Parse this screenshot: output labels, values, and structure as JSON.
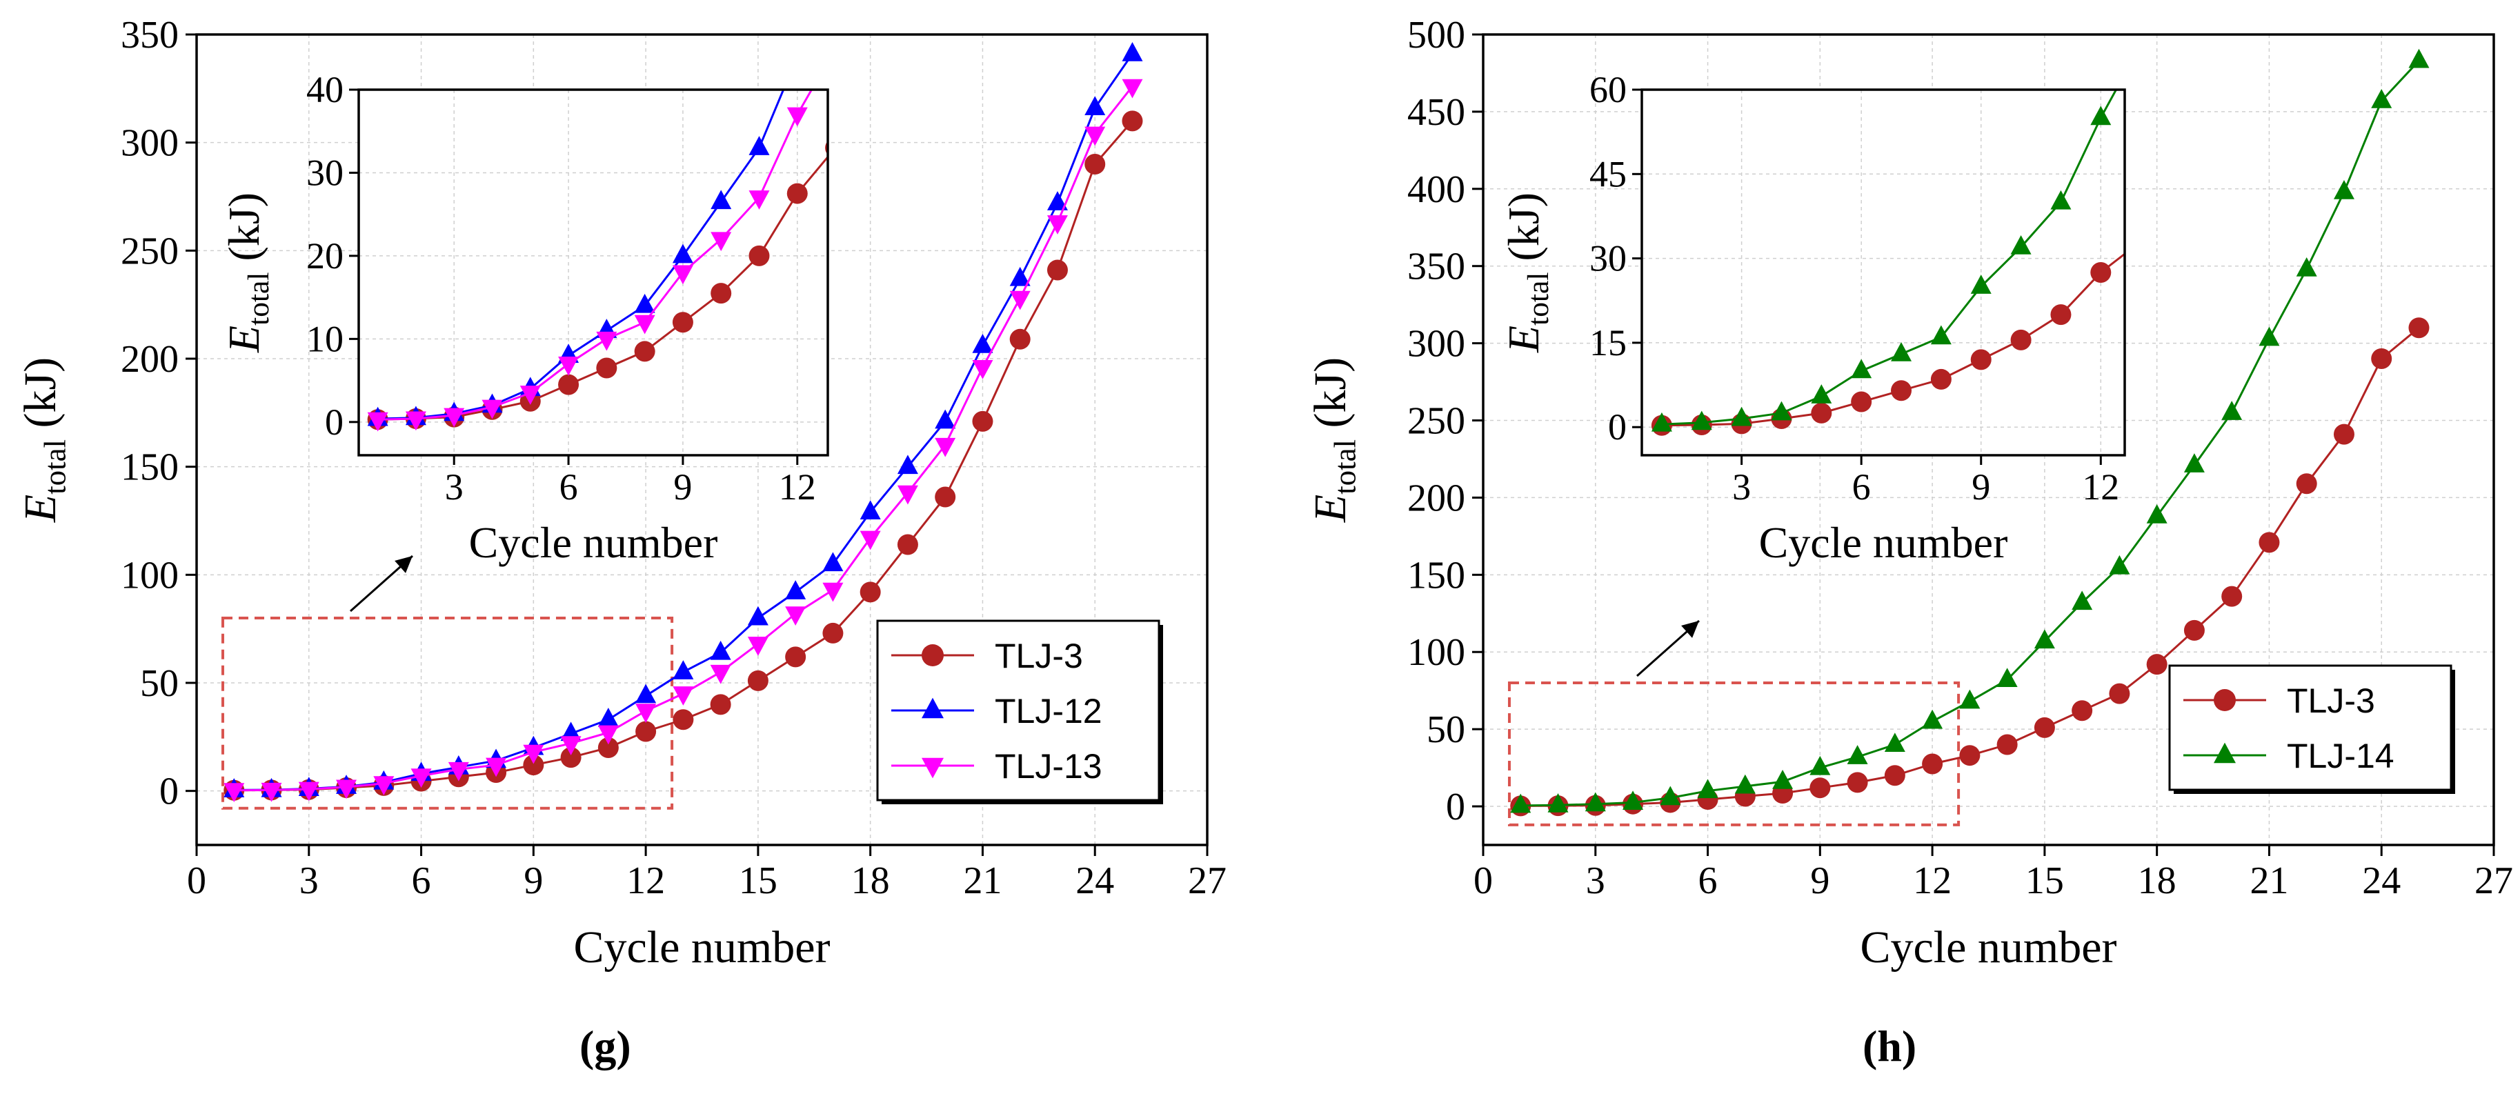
{
  "panels": [
    {
      "id": "g",
      "caption": "(g)",
      "chart_data": {
        "type": "line",
        "title": "",
        "xlabel": "Cycle number",
        "ylabel_main": "E",
        "ylabel_sub": "total",
        "ylabel_unit": " (kJ)",
        "xlim": [
          0,
          27
        ],
        "ylim": [
          -25,
          350
        ],
        "xticks": [
          0,
          3,
          6,
          9,
          12,
          15,
          18,
          21,
          24,
          27
        ],
        "yticks": [
          0,
          50,
          100,
          150,
          200,
          250,
          300,
          350
        ],
        "grid": true,
        "legend_position": "bottom-right",
        "x": [
          1,
          2,
          3,
          4,
          5,
          6,
          7,
          8,
          9,
          10,
          11,
          12,
          13,
          14,
          15,
          16,
          17,
          18,
          19,
          20,
          21,
          22,
          23,
          24,
          25
        ],
        "series": [
          {
            "name": "TLJ-3",
            "color": "#b22222",
            "marker": "circle",
            "values": [
              0.3,
              0.4,
              0.6,
              1.5,
              2.5,
              4.5,
              6.5,
              8.5,
              12,
              15.5,
              20,
              27.5,
              33,
              40,
              51,
              62,
              73,
              92,
              114,
              136,
              171,
              209,
              241,
              290,
              310
            ]
          },
          {
            "name": "TLJ-12",
            "color": "#0000ff",
            "marker": "triangle-up",
            "values": [
              0.4,
              0.5,
              1,
              2,
              4,
              8,
              11,
              14,
              20,
              26.5,
              33,
              44,
              55,
              64,
              80,
              92,
              105,
              129,
              150,
              171,
              206,
              237,
              272,
              316,
              341
            ]
          },
          {
            "name": "TLJ-13",
            "color": "#ff00ff",
            "marker": "triangle-down",
            "values": [
              0.3,
              0.4,
              0.8,
              1.8,
              3.5,
              7,
              10,
              12,
              18,
              22,
              27,
              37,
              45,
              55,
              68,
              82,
              93,
              117,
              138,
              160,
              196,
              228,
              263,
              304,
              326
            ]
          }
        ],
        "inset": {
          "xlabel": "Cycle number",
          "ylabel_main": "E",
          "ylabel_sub": "total",
          "ylabel_unit": " (kJ)",
          "xlim": [
            0.5,
            12.8
          ],
          "ylim": [
            -4,
            40
          ],
          "xticks": [
            3,
            6,
            9,
            12
          ],
          "yticks": [
            0,
            10,
            20,
            30,
            40
          ],
          "x_max": 13
        },
        "annotation": {
          "box_x": [
            0.7,
            12.7
          ],
          "box_y": [
            -8,
            80
          ]
        }
      }
    },
    {
      "id": "h",
      "caption": "(h)",
      "chart_data": {
        "type": "line",
        "title": "",
        "xlabel": "Cycle number",
        "ylabel_main": "E",
        "ylabel_sub": "total",
        "ylabel_unit": " (kJ)",
        "xlim": [
          0,
          27
        ],
        "ylim": [
          -25,
          500
        ],
        "xticks": [
          0,
          3,
          6,
          9,
          12,
          15,
          18,
          21,
          24,
          27
        ],
        "yticks": [
          0,
          50,
          100,
          150,
          200,
          250,
          300,
          350,
          400,
          450,
          500
        ],
        "grid": true,
        "legend_position": "bottom-right",
        "x": [
          1,
          2,
          3,
          4,
          5,
          6,
          7,
          8,
          9,
          10,
          11,
          12,
          13,
          14,
          15,
          16,
          17,
          18,
          19,
          20,
          21,
          22,
          23,
          24,
          25
        ],
        "series": [
          {
            "name": "TLJ-3",
            "color": "#b22222",
            "marker": "circle",
            "values": [
              0.3,
              0.4,
              0.6,
              1.5,
              2.5,
              4.5,
              6.5,
              8.5,
              12,
              15.5,
              20,
              27.5,
              33,
              40,
              51,
              62,
              73,
              92,
              114,
              136,
              171,
              209,
              241,
              290,
              310
            ]
          },
          {
            "name": "TLJ-14",
            "color": "#008000",
            "marker": "triangle-up",
            "values": [
              0.5,
              0.8,
              1.5,
              2.5,
              5.5,
              10,
              13,
              16,
              25,
              32,
              40,
              55,
              68,
              82,
              107,
              132,
              155,
              188,
              221,
              255,
              303,
              348,
              398,
              457,
              483
            ]
          }
        ],
        "inset": {
          "xlabel": "Cycle number",
          "ylabel_main": "E",
          "ylabel_sub": "total",
          "ylabel_unit": " (kJ)",
          "xlim": [
            0.5,
            12.6
          ],
          "ylim": [
            -5,
            60
          ],
          "xticks": [
            3,
            6,
            9,
            12
          ],
          "yticks": [
            0,
            15,
            30,
            45,
            60
          ],
          "x_max": 13
        },
        "annotation": {
          "box_x": [
            0.7,
            12.7
          ],
          "box_y": [
            -12,
            80
          ]
        }
      }
    }
  ]
}
